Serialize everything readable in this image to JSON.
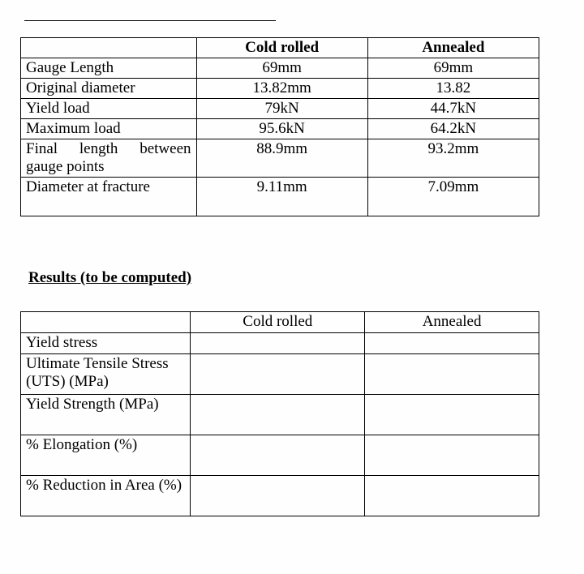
{
  "table1": {
    "headers": {
      "empty": "",
      "col1": "Cold rolled",
      "col2": "Annealed"
    },
    "rows": [
      {
        "label": "Gauge Length",
        "v1": "69mm",
        "v2": "69mm"
      },
      {
        "label": "Original diameter",
        "v1": "13.82mm",
        "v2": "13.82"
      },
      {
        "label": "Yield load",
        "v1": "79kN",
        "v2": "44.7kN"
      },
      {
        "label": "Maximum load",
        "v1": "95.6kN",
        "v2": "64.2kN"
      },
      {
        "label": "Final length between gauge points",
        "v1": "88.9mm",
        "v2": "93.2mm"
      },
      {
        "label": "Diameter at fracture",
        "v1": "9.11mm",
        "v2": "7.09mm"
      }
    ]
  },
  "section_heading": "Results (to be computed)",
  "table2": {
    "headers": {
      "empty": "",
      "col1": "Cold rolled",
      "col2": "Annealed"
    },
    "rows": [
      {
        "label": "Yield stress",
        "v1": "",
        "v2": ""
      },
      {
        "label": "Ultimate Tensile Stress (UTS) (MPa)",
        "v1": "",
        "v2": ""
      },
      {
        "label": "Yield Strength (MPa)",
        "v1": "",
        "v2": ""
      },
      {
        "label": "% Elongation (%)",
        "v1": "",
        "v2": ""
      },
      {
        "label": "% Reduction in Area (%)",
        "v1": "",
        "v2": ""
      }
    ]
  },
  "colors": {
    "background": "#fefefe",
    "text": "#000000",
    "border": "#000000"
  },
  "typography": {
    "font_family": "Times New Roman",
    "base_fontsize": 19
  }
}
